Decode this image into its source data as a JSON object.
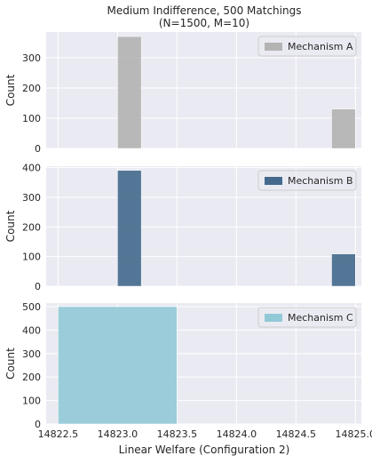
{
  "chart_data": {
    "title_lines": [
      "Medium Indifference, 500 Matchings",
      "(N=1500, M=10)"
    ],
    "type": "bar",
    "xlabel": "Linear Welfare (Configuration 2)",
    "xlim": [
      14822.4,
      14825.05
    ],
    "x_ticks": [
      14822.5,
      14823.0,
      14823.5,
      14824.0,
      14824.5,
      14825.0
    ],
    "x_tick_labels": [
      "14822.5",
      "14823.0",
      "14823.5",
      "14824.0",
      "14824.5",
      "14825.0"
    ],
    "grid": true,
    "legend_position": "top-right",
    "panels": [
      {
        "name": "Mechanism A",
        "color": "#b3b3b3",
        "ylabel": "Count",
        "ylim": [
          0,
          385
        ],
        "y_ticks": [
          0,
          100,
          200,
          300
        ],
        "bars": [
          {
            "x0": 14823.0,
            "x1": 14823.2,
            "count": 370
          },
          {
            "x0": 14824.8,
            "x1": 14825.0,
            "count": 130
          }
        ]
      },
      {
        "name": "Mechanism B",
        "color": "#44698c",
        "ylabel": "Count",
        "ylim": [
          0,
          405
        ],
        "y_ticks": [
          0,
          100,
          200,
          300,
          400
        ],
        "bars": [
          {
            "x0": 14823.0,
            "x1": 14823.2,
            "count": 391
          },
          {
            "x0": 14824.8,
            "x1": 14825.0,
            "count": 109
          }
        ]
      },
      {
        "name": "Mechanism C",
        "color": "#92c9d6",
        "ylabel": "Count",
        "ylim": [
          0,
          515
        ],
        "y_ticks": [
          0,
          100,
          200,
          300,
          400,
          500
        ],
        "bars": [
          {
            "x0": 14822.5,
            "x1": 14823.5,
            "count": 500
          }
        ]
      }
    ]
  }
}
